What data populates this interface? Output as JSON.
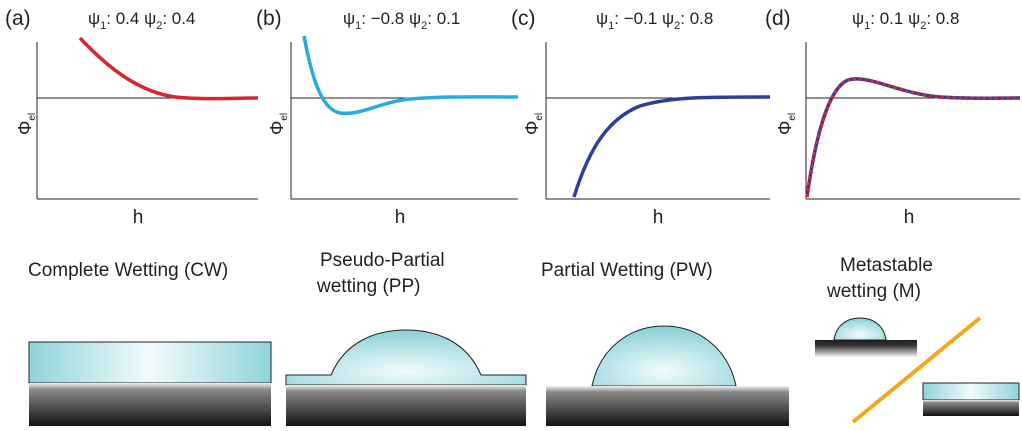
{
  "axes": {
    "y_label_main": "Φ",
    "y_label_sub": "el",
    "x_label": "h"
  },
  "panels": [
    {
      "id": "a",
      "tag": "(a)",
      "psi1": "0.4",
      "psi2": "0.4",
      "curve_color": "#d7262f",
      "curve_style": "solid",
      "regime": [
        "Complete Wetting (CW)"
      ]
    },
    {
      "id": "b",
      "tag": "(b)",
      "psi1": "−0.8",
      "psi2": "0.1",
      "curve_color": "#29abe2",
      "curve_style": "solid",
      "regime": [
        "Pseudo-Partial",
        "wetting (PP)"
      ]
    },
    {
      "id": "c",
      "tag": "(c)",
      "psi1": "−0.1",
      "psi2": "0.8",
      "curve_color": "#2e3f97",
      "curve_style": "solid",
      "regime": [
        "Partial Wetting (PW)"
      ]
    },
    {
      "id": "d",
      "tag": "(d)",
      "psi1": "0.1",
      "psi2": "0.8",
      "curve_color": "#2e3f97",
      "curve_overlay": "#d7262f",
      "curve_style": "dashed-overlay",
      "regime": [
        "Metastable",
        "wetting (M)"
      ]
    }
  ],
  "psi_symbol": "ψ",
  "colors": {
    "liquid_edge": "#8fd3da",
    "liquid_center": "#f2fbfc",
    "substrate_top": "#f2f2f2",
    "substrate_bottom": "#1a1a1a",
    "divider": "#f2a81d",
    "axis": "#231f20"
  }
}
